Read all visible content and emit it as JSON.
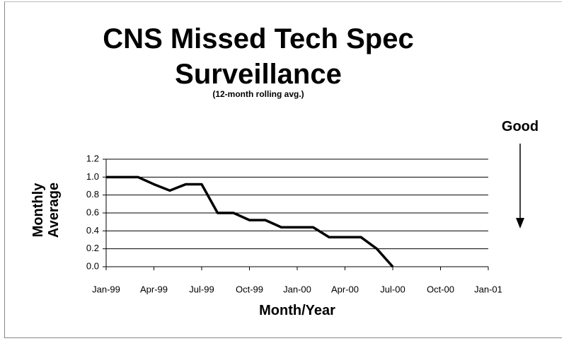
{
  "chart_data": {
    "type": "line",
    "title": "CNS Missed Tech Spec Surveillance",
    "subtitle": "(12-month rolling avg.)",
    "y_label": "Monthly Average",
    "x_label": "Month/Year",
    "annotation": "Good",
    "x": [
      0,
      1,
      2,
      3,
      4,
      5,
      6,
      7,
      8,
      9,
      10,
      11,
      12,
      13,
      14,
      15,
      16,
      17,
      18
    ],
    "values": [
      1.0,
      1.0,
      1.0,
      0.92,
      0.85,
      0.92,
      0.92,
      0.6,
      0.6,
      0.52,
      0.52,
      0.44,
      0.44,
      0.44,
      0.33,
      0.33,
      0.33,
      0.2,
      0.0
    ],
    "color": "#000000",
    "xlim": [
      0,
      24
    ],
    "xticks": [
      {
        "value": 0,
        "label": "Jan-99"
      },
      {
        "value": 3,
        "label": "Apr-99"
      },
      {
        "value": 6,
        "label": "Jul-99"
      },
      {
        "value": 9,
        "label": "Oct-99"
      },
      {
        "value": 12,
        "label": "Jan-00"
      },
      {
        "value": 15,
        "label": "Apr-00"
      },
      {
        "value": 18,
        "label": "Jul-00"
      },
      {
        "value": 21,
        "label": "Oct-00"
      },
      {
        "value": 24,
        "label": "Jan-01"
      }
    ],
    "ylim": [
      0,
      1.2
    ],
    "yticks": [
      {
        "value": 0,
        "label": "0.0"
      },
      0.2,
      0.4,
      0.6,
      0.8,
      {
        "value": 1,
        "label": "1.0"
      },
      1.2
    ],
    "grid": true
  }
}
